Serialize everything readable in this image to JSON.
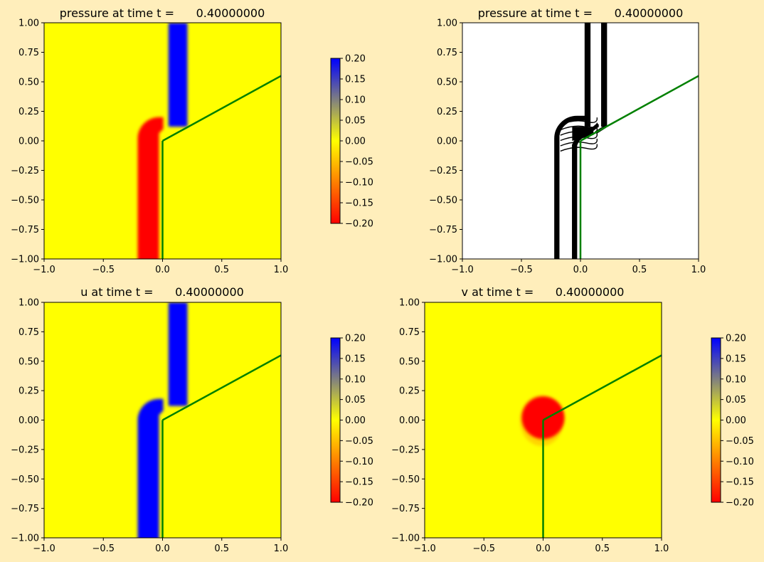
{
  "figure": {
    "background": "#ffeebb"
  },
  "colormap": {
    "low": "#ff0000",
    "mid": "#ffff00",
    "high": "#0000ff",
    "vmin": -0.2,
    "vmax": 0.2
  },
  "interface_color": "#008000",
  "chart_data": [
    {
      "id": "p1",
      "type": "heatmap",
      "title": "pressure at time t =      0.40000000",
      "xlim": [
        -1,
        1
      ],
      "ylim": [
        -1,
        1
      ],
      "xticks": [
        "−1.0",
        "−0.5",
        "0.0",
        "0.5",
        "1.0"
      ],
      "yticks": [
        "1.00",
        "0.75",
        "0.50",
        "0.25",
        "0.00",
        "−0.25",
        "−0.50",
        "−0.75",
        "−1.00"
      ],
      "colorbar": {
        "min": -0.2,
        "max": 0.2,
        "ticks": [
          "0.20",
          "0.15",
          "0.10",
          "0.05",
          "0.00",
          "−0.05",
          "−0.10",
          "−0.15",
          "−0.20"
        ]
      },
      "field": "pressure",
      "features": [
        {
          "kind": "vband",
          "x0": 0.05,
          "x1": 0.21,
          "y0": 0.12,
          "y1": 1.0,
          "value": 0.2
        },
        {
          "kind": "ushape",
          "xi": -0.03,
          "xo": -0.21,
          "yt": 0.2,
          "yb": -1.0,
          "value": -0.2
        }
      ],
      "interface": {
        "vertical": [
          [
            0.0,
            -1.0
          ],
          [
            0.0,
            0.0
          ]
        ],
        "slanted": [
          [
            0.0,
            0.0
          ],
          [
            1.0,
            0.55
          ]
        ]
      }
    },
    {
      "id": "p2",
      "type": "contour",
      "title": "pressure at time t =      0.40000000",
      "xlim": [
        -1,
        1
      ],
      "ylim": [
        -1,
        1
      ],
      "xticks": [
        "−1.0",
        "−0.5",
        "0.0",
        "0.5",
        "1.0"
      ],
      "yticks": [
        "1.00",
        "0.75",
        "0.50",
        "0.25",
        "0.00",
        "−0.25",
        "−0.50",
        "−0.75",
        "−1.00"
      ],
      "contour_x": {
        "outer": [
          -0.21,
          -0.19
        ],
        "inner": [
          -0.06,
          -0.04
        ],
        "upper": [
          0.05,
          0.07,
          0.19,
          0.21
        ]
      },
      "interface": {
        "vertical": [
          [
            0.0,
            -1.0
          ],
          [
            0.0,
            0.0
          ]
        ],
        "slanted": [
          [
            0.0,
            0.0
          ],
          [
            1.0,
            0.55
          ]
        ]
      }
    },
    {
      "id": "u",
      "type": "heatmap",
      "title": "u at time t =      0.40000000",
      "xlim": [
        -1,
        1
      ],
      "ylim": [
        -1,
        1
      ],
      "xticks": [
        "−1.0",
        "−0.5",
        "0.0",
        "0.5",
        "1.0"
      ],
      "yticks": [
        "1.00",
        "0.75",
        "0.50",
        "0.25",
        "0.00",
        "−0.25",
        "−0.50",
        "−0.75",
        "−1.00"
      ],
      "colorbar": {
        "min": -0.2,
        "max": 0.2,
        "ticks": [
          "0.20",
          "0.15",
          "0.10",
          "0.05",
          "0.00",
          "−0.05",
          "−0.10",
          "−0.15",
          "−0.20"
        ]
      },
      "field": "u",
      "features": [
        {
          "kind": "vband",
          "x0": 0.05,
          "x1": 0.21,
          "y0": 0.12,
          "y1": 1.0,
          "value": 0.2
        },
        {
          "kind": "ushape",
          "xi": -0.03,
          "xo": -0.21,
          "yt": 0.18,
          "yb": -1.0,
          "value": 0.2
        }
      ],
      "interface": {
        "vertical": [
          [
            0.0,
            -1.0
          ],
          [
            0.0,
            0.0
          ]
        ],
        "slanted": [
          [
            0.0,
            0.0
          ],
          [
            1.0,
            0.55
          ]
        ]
      }
    },
    {
      "id": "v",
      "type": "heatmap",
      "title": "v at time t =      0.40000000",
      "xlim": [
        -1,
        1
      ],
      "ylim": [
        -1,
        1
      ],
      "xticks": [
        "−1.0",
        "−0.5",
        "0.0",
        "0.5",
        "1.0"
      ],
      "yticks": [
        "1.00",
        "0.75",
        "0.50",
        "0.25",
        "0.00",
        "−0.25",
        "−0.50",
        "−0.75",
        "−1.00"
      ],
      "colorbar": {
        "min": -0.2,
        "max": 0.2,
        "ticks": [
          "0.20",
          "0.15",
          "0.10",
          "0.05",
          "0.00",
          "−0.05",
          "−0.10",
          "−0.15",
          "−0.20"
        ]
      },
      "field": "v",
      "features": [
        {
          "kind": "blob",
          "cx": 0.0,
          "cy": 0.02,
          "r": 0.18,
          "value": -0.2
        }
      ],
      "interface": {
        "vertical": [
          [
            0.0,
            -1.0
          ],
          [
            0.0,
            0.0
          ]
        ],
        "slanted": [
          [
            0.0,
            0.0
          ],
          [
            1.0,
            0.55
          ]
        ]
      }
    }
  ]
}
